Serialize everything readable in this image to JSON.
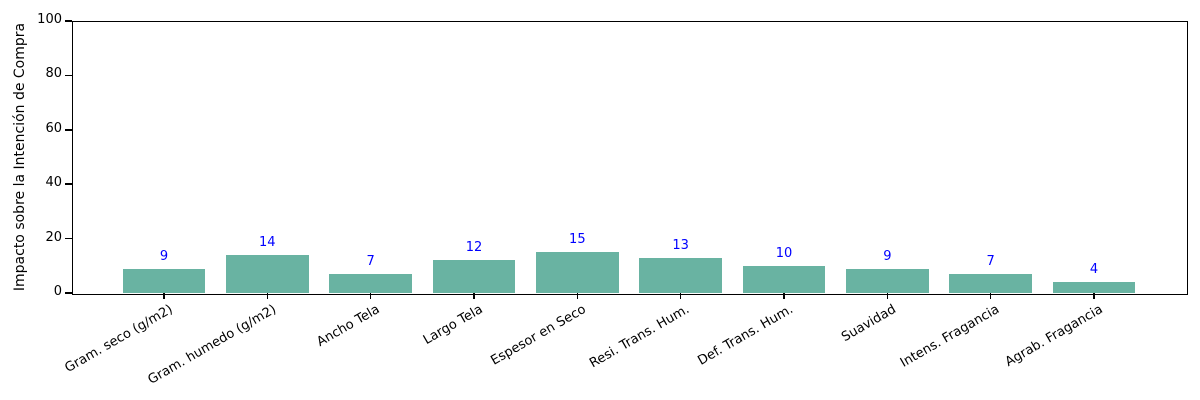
{
  "chart_data": {
    "type": "bar",
    "categories": [
      "Gram. seco (g/m2)",
      "Gram. humedo (g/m2)",
      "Ancho Tela",
      "Largo Tela",
      "Espesor en Seco",
      "Resi. Trans. Hum.",
      "Def. Trans. Hum.",
      "Suavidad",
      "Intens. Fragancia",
      "Agrab. Fragancia"
    ],
    "values": [
      9,
      14,
      7,
      12,
      15,
      13,
      10,
      9,
      7,
      4
    ],
    "title": "",
    "xlabel": "",
    "ylabel": "Impacto sobre la Intención de Compra",
    "ylim": [
      0,
      100
    ],
    "yticks": [
      0,
      20,
      40,
      60,
      80,
      100
    ],
    "x_tick_rotation_deg": 30,
    "grid": false,
    "legend": null,
    "colors": {
      "bar": "#69b3a2",
      "value_label": "#0000ff",
      "axis": "#000000",
      "background": "#ffffff"
    }
  }
}
